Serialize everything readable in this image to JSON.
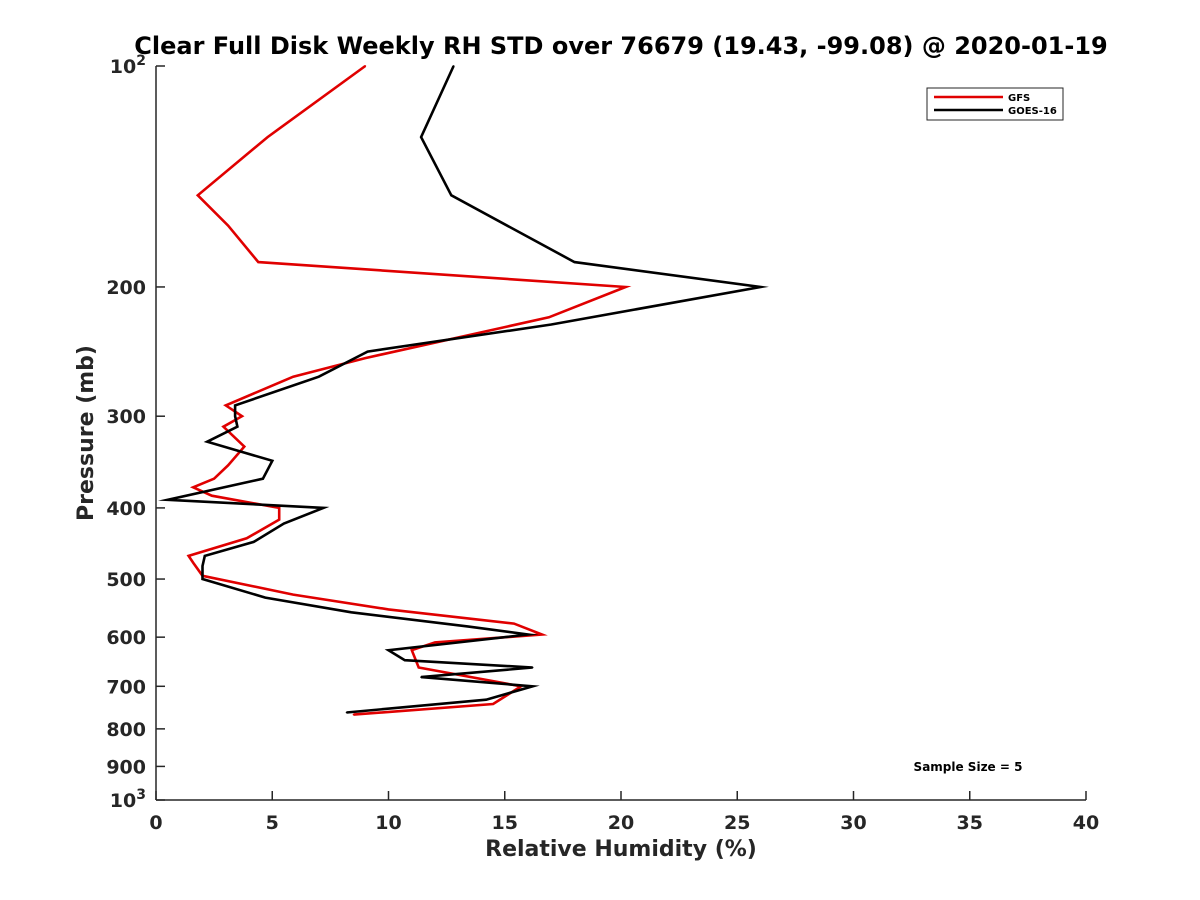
{
  "chart_data": {
    "type": "line",
    "title": "Clear Full Disk Weekly RH STD over 76679 (19.43, -99.08) @ 2020-01-19",
    "xlabel": "Relative Humidity (%)",
    "ylabel": "Pressure (mb)",
    "xlim": [
      0,
      40
    ],
    "ylim": [
      100,
      1000
    ],
    "y_scale": "log",
    "y_reversed": true,
    "grid": false,
    "legend_placement": "top-right",
    "x_ticks": [
      0,
      5,
      10,
      15,
      20,
      25,
      30,
      35,
      40
    ],
    "x_tick_labels": [
      "0",
      "5",
      "10",
      "15",
      "20",
      "25",
      "30",
      "35",
      "40"
    ],
    "y_ticks": [
      100,
      200,
      300,
      400,
      500,
      600,
      700,
      800,
      900,
      1000
    ],
    "y_tick_labels": [
      "10^2",
      "200",
      "300",
      "400",
      "500",
      "600",
      "700",
      "800",
      "900",
      "10^3"
    ],
    "annotation": "Sample Size = 5",
    "series": [
      {
        "name": "GFS",
        "color": "#e00000",
        "pressure": [
          100,
          125,
          150,
          165,
          185,
          200,
          220,
          250,
          265,
          290,
          300,
          310,
          330,
          350,
          365,
          375,
          385,
          400,
          415,
          440,
          465,
          475,
          495,
          525,
          550,
          575,
          595,
          610,
          625,
          660,
          700,
          740,
          765
        ],
        "values": [
          9.0,
          4.8,
          1.8,
          3.1,
          4.4,
          20.2,
          16.9,
          9.0,
          5.9,
          3.0,
          3.7,
          2.9,
          3.8,
          3.1,
          2.5,
          1.6,
          2.4,
          5.3,
          5.3,
          3.9,
          1.4,
          1.6,
          2.0,
          5.9,
          10.0,
          15.4,
          16.6,
          12.0,
          11.0,
          11.3,
          15.7,
          14.5,
          8.5
        ]
      },
      {
        "name": "GOES-16",
        "color": "#000000",
        "pressure": [
          100,
          125,
          150,
          185,
          200,
          225,
          245,
          265,
          290,
          300,
          310,
          325,
          345,
          365,
          390,
          400,
          420,
          445,
          465,
          480,
          500,
          530,
          555,
          580,
          595,
          625,
          645,
          660,
          680,
          700,
          730,
          760
        ],
        "values": [
          12.8,
          11.4,
          12.7,
          18.0,
          26.0,
          17.0,
          9.1,
          7.0,
          3.4,
          3.4,
          3.5,
          2.2,
          5.0,
          4.6,
          0.5,
          7.2,
          5.5,
          4.2,
          2.1,
          2.0,
          2.0,
          4.7,
          8.4,
          13.4,
          16.0,
          10.0,
          10.7,
          16.2,
          11.4,
          16.2,
          14.2,
          8.2
        ]
      }
    ]
  }
}
